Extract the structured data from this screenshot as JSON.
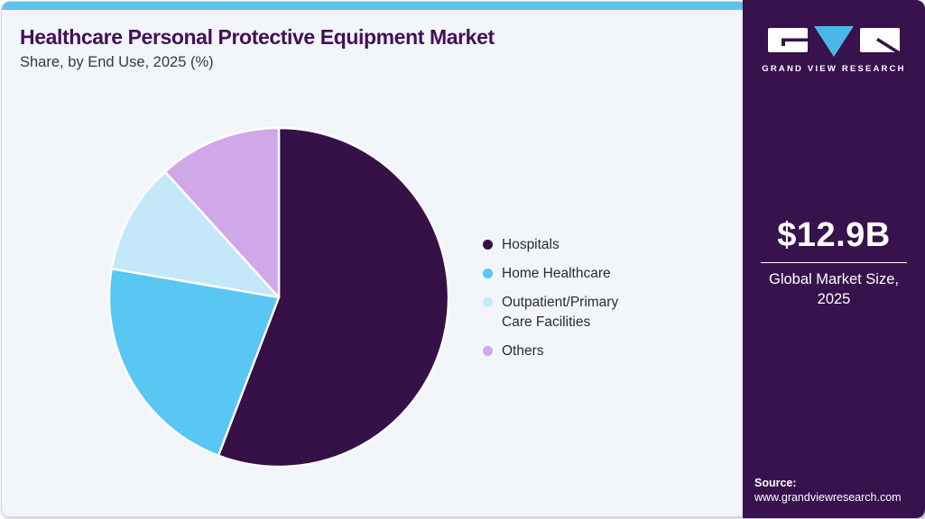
{
  "header": {
    "title": "Healthcare Personal Protective Equipment Market",
    "subtitle": "Share, by End Use, 2025 (%)"
  },
  "chart_data": {
    "type": "pie",
    "title": "Healthcare Personal Protective Equipment Market Share, by End Use, 2025 (%)",
    "categories": [
      "Hospitals",
      "Home Healthcare",
      "Outpatient/Primary Care Facilities",
      "Others"
    ],
    "values": [
      55.8,
      21.9,
      10.6,
      11.7
    ],
    "unit": "%",
    "colors": [
      "#361148",
      "#59c6f3",
      "#c4e8f9",
      "#d0a7e8"
    ],
    "start_angle_deg": 0,
    "direction": "clockwise",
    "slice_border_color": "#ffffff",
    "legend_position": "right",
    "data_labels_visible": false
  },
  "legend": {
    "items": [
      {
        "label": "Hospitals",
        "color": "#361148"
      },
      {
        "label": "Home Healthcare",
        "color": "#59c6f3"
      },
      {
        "label": "Outpatient/Primary Care Facilities",
        "color": "#c4e8f9"
      },
      {
        "label": "Others",
        "color": "#d0a7e8"
      }
    ]
  },
  "sidebar": {
    "brand_name": "GRAND VIEW RESEARCH",
    "market_size_value": "$12.9B",
    "market_size_label": "Global Market Size, 2025",
    "source_label": "Source:",
    "source_url": "www.grandviewresearch.com"
  },
  "theme": {
    "topbar_color": "#5ec3ec",
    "card_background": "#f2f6fa",
    "card_border": "#d5dbe2",
    "sidebar_background": "#37124d",
    "title_color": "#431058",
    "subtitle_color": "#343a40",
    "legend_text_color": "#2b2b33",
    "logo_triangle_color": "#49b8e8"
  }
}
